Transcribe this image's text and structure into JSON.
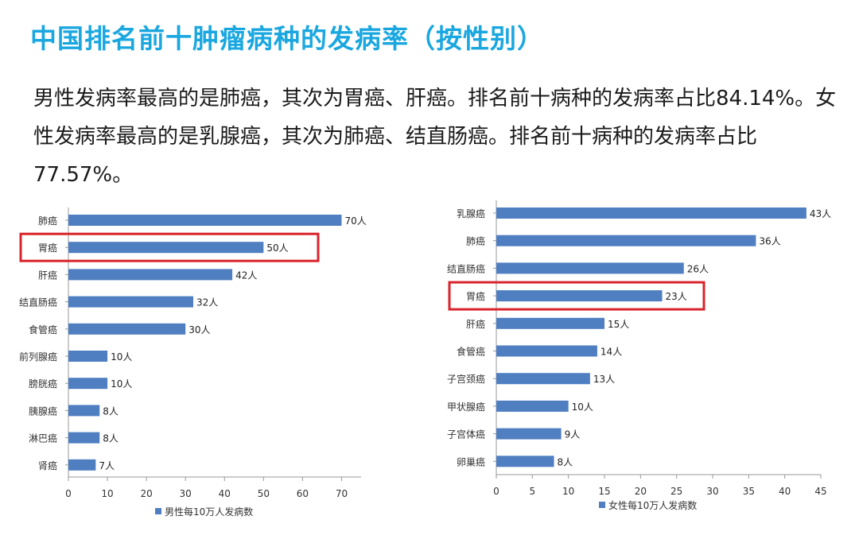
{
  "header": {
    "title": "中国排名前十肿瘤病种的发病率（按性别）",
    "summary": "男性发病率最高的是肺癌，其次为胃癌、肝癌。排名前十病种的发病率占比84.14%。女性发病率最高的是乳腺癌，其次为肺癌、结直肠癌。排名前十病种的发病率占比77.57%。"
  },
  "colors": {
    "bar": "#4f7fc1",
    "highlight": "#d9242b",
    "title": "#1aa7e0",
    "axis": "#999999"
  },
  "chart_data": [
    {
      "type": "bar",
      "orientation": "horizontal",
      "categories": [
        "肺癌",
        "胃癌",
        "肝癌",
        "结直肠癌",
        "食管癌",
        "前列腺癌",
        "膀胱癌",
        "胰腺癌",
        "淋巴癌",
        "肾癌"
      ],
      "values": [
        70,
        50,
        42,
        32,
        30,
        10,
        10,
        8,
        8,
        7
      ],
      "value_labels": [
        "70人",
        "50人",
        "42人",
        "32人",
        "30人",
        "10人",
        "10人",
        "8人",
        "8人",
        "7人"
      ],
      "series_name": "男性每10万人发病数",
      "xlim": [
        0,
        75
      ],
      "xticks": [
        0,
        10,
        20,
        30,
        40,
        50,
        60,
        70
      ],
      "highlight_category": "胃癌",
      "legend_position": "bottom-center"
    },
    {
      "type": "bar",
      "orientation": "horizontal",
      "categories": [
        "乳腺癌",
        "肺癌",
        "结直肠癌",
        "胃癌",
        "肝癌",
        "食管癌",
        "子宫颈癌",
        "甲状腺癌",
        "子宫体癌",
        "卵巢癌"
      ],
      "values": [
        43,
        36,
        26,
        23,
        15,
        14,
        13,
        10,
        9,
        8
      ],
      "value_labels": [
        "43人",
        "36人",
        "26人",
        "23人",
        "15人",
        "14人",
        "13人",
        "10人",
        "9人",
        "8人"
      ],
      "series_name": "女性每10万人发病数",
      "xlim": [
        0,
        45
      ],
      "xticks": [
        0,
        5,
        10,
        15,
        20,
        25,
        30,
        35,
        40,
        45
      ],
      "highlight_category": "胃癌",
      "legend_position": "bottom-center"
    }
  ]
}
